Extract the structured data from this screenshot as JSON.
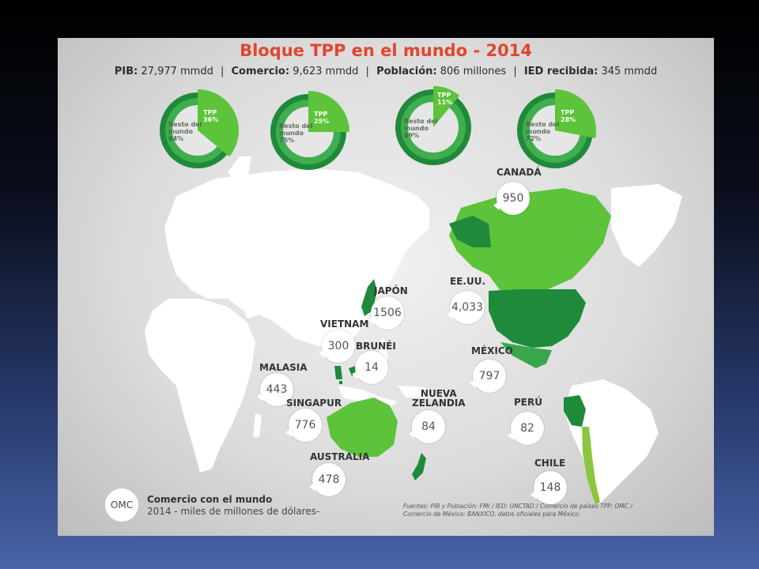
{
  "title": "Bloque TPP en el mundo - 2014",
  "stats": [
    {
      "label": "PIB:",
      "value": "27,977 mmdd"
    },
    {
      "label": "Comercio:",
      "value": "9,623 mmdd"
    },
    {
      "label": "Población:",
      "value": "806 millones"
    },
    {
      "label": "IED recibida:",
      "value": "345 mmdd"
    }
  ],
  "donuts": [
    {
      "tpp_label": "TPP",
      "tpp_pct": "36%",
      "tpp_value": 36,
      "rest_l1": "Resto del",
      "rest_l2": "mundo",
      "rest_pct": "64%"
    },
    {
      "tpp_label": "TPP",
      "tpp_pct": "25%",
      "tpp_value": 25,
      "rest_l1": "Resto del",
      "rest_l2": "mundo",
      "rest_pct": "75%"
    },
    {
      "tpp_label": "TPP",
      "tpp_pct": "11%",
      "tpp_value": 11,
      "rest_l1": "Resto del",
      "rest_l2": "mundo",
      "rest_pct": "89%"
    },
    {
      "tpp_label": "TPP",
      "tpp_pct": "28%",
      "tpp_value": 28,
      "rest_l1": "Resto del",
      "rest_l2": "mundo",
      "rest_pct": "72%"
    }
  ],
  "countries": {
    "canada": {
      "name": "CANADÁ",
      "value": "950"
    },
    "eeuu": {
      "name": "EE.UU.",
      "value": "4,033"
    },
    "mexico": {
      "name": "MÉXICO",
      "value": "797"
    },
    "peru": {
      "name": "PERÚ",
      "value": "82"
    },
    "chile": {
      "name": "CHILE",
      "value": "148"
    },
    "japon": {
      "name": "JAPÓN",
      "value": "1506"
    },
    "vietnam": {
      "name": "VIETNAM",
      "value": "300"
    },
    "brunei": {
      "name": "BRUNÉI",
      "value": "14"
    },
    "malasia": {
      "name": "MALASIA",
      "value": "443"
    },
    "singapur": {
      "name": "SINGAPUR",
      "value": "776"
    },
    "australia": {
      "name": "AUSTRALIA",
      "value": "478"
    },
    "nz": {
      "name_l1": "NUEVA",
      "name_l2": "ZELANDIA",
      "value": "84"
    }
  },
  "legend": {
    "badge": "OMC",
    "title": "Comercio con el mundo",
    "subtitle": "2014 - miles de millones de dólares-"
  },
  "sources": {
    "line1": "Fuentes: PIB y Población: FMI   /   IED: UNCTAD   / Comercio de países TPP: OMC /",
    "line2": "Comercio de México: BANXICO, datos oficiales para México."
  },
  "colors": {
    "title": "#e2462e",
    "tpp_light": "#5cc33a",
    "tpp_dark": "#1f8a3a",
    "tpp_mid": "#3aa64a",
    "land": "#ffffff"
  }
}
